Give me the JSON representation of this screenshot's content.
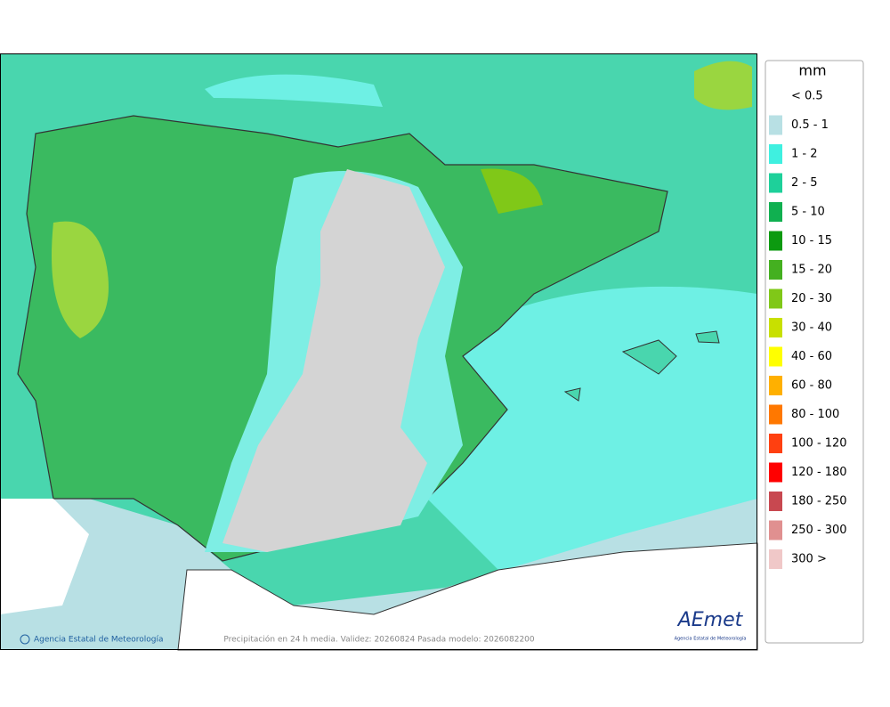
{
  "legend": {
    "title": "mm",
    "items": [
      {
        "label": "< 0.5",
        "color": "#ffffff"
      },
      {
        "label": "0.5 - 1",
        "color": "#b8e0e4"
      },
      {
        "label": "1 - 2",
        "color": "#3ff0e0"
      },
      {
        "label": "2 - 5",
        "color": "#1ed09a"
      },
      {
        "label": "5 - 10",
        "color": "#10b050"
      },
      {
        "label": "10 - 15",
        "color": "#0c9a10"
      },
      {
        "label": "15 - 20",
        "color": "#44b020"
      },
      {
        "label": "20 - 30",
        "color": "#80c818"
      },
      {
        "label": "30 - 40",
        "color": "#c8e000"
      },
      {
        "label": "40 - 60",
        "color": "#ffff00"
      },
      {
        "label": "60 - 80",
        "color": "#ffb000"
      },
      {
        "label": "80 - 100",
        "color": "#ff7800"
      },
      {
        "label": "100 - 120",
        "color": "#ff4010"
      },
      {
        "label": "120 - 180",
        "color": "#ff0000"
      },
      {
        "label": "180 - 250",
        "color": "#c84850"
      },
      {
        "label": "250 - 300",
        "color": "#e09090"
      },
      {
        "label": "300 >",
        "color": "#f0c8c8"
      }
    ]
  },
  "footer": {
    "credit": "Agencia Estatal de Meteorología",
    "caption": "Precipitación en 24 h media. Validez: 20260824 Pasada modelo: 2026082200"
  },
  "logo": {
    "name": "AEmet",
    "subtitle": "Agencia Estatal de Meteorología"
  }
}
